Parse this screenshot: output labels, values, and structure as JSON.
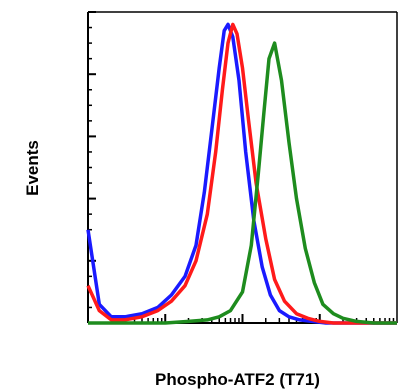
{
  "chart_data": {
    "type": "line",
    "xlabel": "Phospho-ATF2 (T71)",
    "ylabel": "Events",
    "x_scale": "log",
    "xlim": [
      1,
      10000
    ],
    "ylim": [
      0,
      100
    ],
    "grid": false,
    "series": [
      {
        "color": "#1a1aff",
        "x": [
          1,
          1.4,
          2,
          3,
          5,
          8,
          12,
          18,
          25,
          32,
          40,
          50,
          58,
          65,
          75,
          90,
          110,
          140,
          180,
          230,
          300,
          400,
          550,
          800,
          1200,
          2000,
          10000
        ],
        "y": [
          30,
          6,
          2,
          2,
          3,
          5,
          9,
          15,
          25,
          42,
          62,
          82,
          94,
          96,
          92,
          78,
          55,
          33,
          18,
          9,
          4,
          2,
          1,
          0.5,
          0,
          0,
          0
        ]
      },
      {
        "color": "#ff1a1a",
        "x": [
          1,
          1.4,
          2,
          3,
          5,
          8,
          12,
          18,
          25,
          35,
          45,
          55,
          65,
          75,
          85,
          100,
          120,
          150,
          200,
          260,
          350,
          500,
          700,
          1000,
          1500,
          2500,
          10000
        ],
        "y": [
          12,
          4,
          1,
          1,
          2,
          4,
          7,
          12,
          20,
          35,
          55,
          75,
          90,
          96,
          93,
          82,
          65,
          45,
          27,
          14,
          7,
          3,
          1.5,
          0.5,
          0,
          0,
          0
        ]
      },
      {
        "color": "#1e8c1e",
        "x": [
          1,
          2,
          5,
          10,
          20,
          35,
          50,
          70,
          100,
          130,
          160,
          190,
          220,
          260,
          320,
          400,
          500,
          650,
          850,
          1100,
          1500,
          2000,
          3000,
          5000,
          10000
        ],
        "y": [
          0,
          0,
          0,
          0,
          0.5,
          1,
          2,
          4,
          10,
          25,
          48,
          68,
          85,
          90,
          78,
          58,
          40,
          24,
          13,
          6,
          3,
          1.5,
          0.5,
          0,
          0
        ]
      }
    ]
  }
}
